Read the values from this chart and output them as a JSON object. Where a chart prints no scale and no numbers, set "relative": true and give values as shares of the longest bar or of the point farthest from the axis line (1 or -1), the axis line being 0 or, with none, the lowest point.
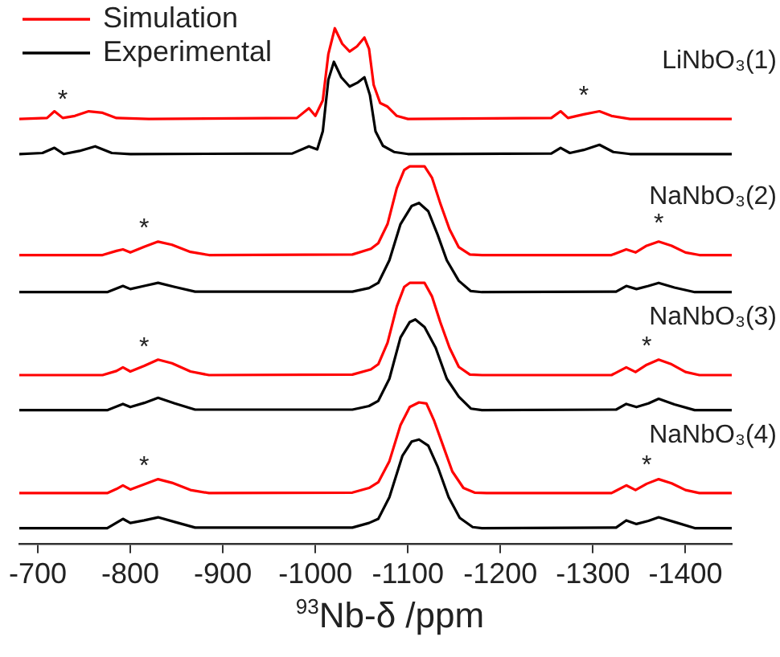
{
  "chart_data": {
    "type": "line",
    "relative": true,
    "xlabel": "$^{93}$Nb-δ /ppm",
    "xlim": [
      -680,
      -1450
    ],
    "xticks": [
      -700,
      -800,
      -900,
      -1000,
      -1100,
      -1200,
      -1300,
      -1400
    ],
    "tick_labels": "x",
    "grid": false,
    "legend": "top left",
    "marker": "none",
    "line_style": "solid",
    "series": [
      {
        "name": "Simulation",
        "color": "#ff0000",
        "x": [
          -680,
          -710,
          -718,
          -727,
          -740,
          -755,
          -770,
          -785,
          -820,
          -980,
          -993,
          -1000,
          -1008,
          -1014,
          -1021,
          -1029,
          -1037,
          -1045,
          -1053,
          -1058,
          -1063,
          -1070,
          -1078,
          -1088,
          -1100,
          -1255,
          -1265,
          -1273,
          -1290,
          -1307,
          -1320,
          -1340,
          -1450
        ],
        "values": [
          0.824,
          0.826,
          0.839,
          0.826,
          0.83,
          0.839,
          0.836,
          0.826,
          0.824,
          0.826,
          0.845,
          0.83,
          0.86,
          0.95,
          1.0,
          0.97,
          0.955,
          0.965,
          0.982,
          0.96,
          0.89,
          0.855,
          0.848,
          0.83,
          0.824,
          0.826,
          0.839,
          0.826,
          0.833,
          0.839,
          0.83,
          0.824,
          0.824
        ]
      },
      {
        "name": "Experimental",
        "color": "#000000",
        "x": [
          -680,
          -705,
          -718,
          -728,
          -745,
          -762,
          -780,
          -800,
          -975,
          -993,
          -1002,
          -1008,
          -1014,
          -1020,
          -1028,
          -1037,
          -1046,
          -1053,
          -1059,
          -1065,
          -1073,
          -1085,
          -1100,
          -1255,
          -1265,
          -1275,
          -1290,
          -1307,
          -1322,
          -1340,
          -1450
        ],
        "values": [
          0.756,
          0.758,
          0.768,
          0.756,
          0.762,
          0.771,
          0.758,
          0.756,
          0.757,
          0.771,
          0.765,
          0.8,
          0.9,
          0.935,
          0.905,
          0.887,
          0.895,
          0.905,
          0.87,
          0.8,
          0.772,
          0.76,
          0.756,
          0.757,
          0.768,
          0.758,
          0.764,
          0.774,
          0.76,
          0.756,
          0.756
        ]
      },
      {
        "color": "#ff0000",
        "x": [
          -680,
          -770,
          -785,
          -792,
          -800,
          -815,
          -830,
          -845,
          -865,
          -885,
          -1040,
          -1060,
          -1068,
          -1078,
          -1088,
          -1096,
          -1102,
          -1118,
          -1126,
          -1135,
          -1145,
          -1155,
          -1167,
          -1180,
          -1320,
          -1336,
          -1346,
          -1358,
          -1371,
          -1385,
          -1400,
          -1415,
          -1450
        ],
        "values": [
          0.56,
          0.56,
          0.568,
          0.571,
          0.565,
          0.576,
          0.586,
          0.58,
          0.566,
          0.56,
          0.561,
          0.572,
          0.583,
          0.62,
          0.69,
          0.725,
          0.732,
          0.732,
          0.71,
          0.66,
          0.61,
          0.575,
          0.561,
          0.56,
          0.56,
          0.571,
          0.565,
          0.578,
          0.586,
          0.578,
          0.565,
          0.56,
          0.56
        ]
      },
      {
        "color": "#000000",
        "x": [
          -680,
          -775,
          -792,
          -800,
          -815,
          -830,
          -848,
          -870,
          -1040,
          -1058,
          -1068,
          -1080,
          -1092,
          -1104,
          -1112,
          -1122,
          -1132,
          -1142,
          -1155,
          -1168,
          -1180,
          -1325,
          -1336,
          -1347,
          -1360,
          -1371,
          -1388,
          -1410,
          -1450
        ],
        "values": [
          0.488,
          0.488,
          0.5,
          0.494,
          0.5,
          0.506,
          0.498,
          0.489,
          0.489,
          0.496,
          0.506,
          0.55,
          0.62,
          0.655,
          0.661,
          0.645,
          0.6,
          0.55,
          0.51,
          0.49,
          0.488,
          0.489,
          0.5,
          0.494,
          0.5,
          0.506,
          0.497,
          0.488,
          0.488
        ]
      },
      {
        "color": "#ff0000",
        "x": [
          -680,
          -770,
          -785,
          -792,
          -800,
          -815,
          -830,
          -845,
          -865,
          -885,
          -1040,
          -1060,
          -1068,
          -1078,
          -1088,
          -1096,
          -1102,
          -1118,
          -1126,
          -1135,
          -1145,
          -1155,
          -1167,
          -1180,
          -1320,
          -1336,
          -1346,
          -1358,
          -1371,
          -1385,
          -1400,
          -1415,
          -1450
        ],
        "values": [
          0.327,
          0.327,
          0.335,
          0.342,
          0.334,
          0.345,
          0.357,
          0.35,
          0.334,
          0.327,
          0.328,
          0.338,
          0.348,
          0.39,
          0.46,
          0.498,
          0.506,
          0.506,
          0.48,
          0.43,
          0.38,
          0.343,
          0.328,
          0.327,
          0.327,
          0.342,
          0.333,
          0.347,
          0.357,
          0.348,
          0.333,
          0.327,
          0.327
        ]
      },
      {
        "color": "#000000",
        "x": [
          -680,
          -775,
          -792,
          -800,
          -815,
          -830,
          -848,
          -870,
          -1040,
          -1058,
          -1068,
          -1080,
          -1092,
          -1102,
          -1108,
          -1118,
          -1130,
          -1142,
          -1155,
          -1168,
          -1180,
          -1325,
          -1336,
          -1347,
          -1360,
          -1371,
          -1388,
          -1410,
          -1450
        ],
        "values": [
          0.259,
          0.259,
          0.271,
          0.265,
          0.273,
          0.283,
          0.272,
          0.26,
          0.26,
          0.267,
          0.277,
          0.32,
          0.4,
          0.43,
          0.435,
          0.42,
          0.38,
          0.32,
          0.285,
          0.262,
          0.259,
          0.26,
          0.271,
          0.265,
          0.272,
          0.281,
          0.27,
          0.259,
          0.259
        ]
      },
      {
        "color": "#ff0000",
        "x": [
          -680,
          -775,
          -785,
          -792,
          -800,
          -815,
          -830,
          -845,
          -865,
          -885,
          -1040,
          -1058,
          -1068,
          -1080,
          -1092,
          -1102,
          -1112,
          -1120,
          -1128,
          -1138,
          -1148,
          -1160,
          -1172,
          -1185,
          -1320,
          -1336,
          -1346,
          -1358,
          -1371,
          -1385,
          -1400,
          -1415,
          -1450
        ],
        "values": [
          0.098,
          0.098,
          0.106,
          0.113,
          0.105,
          0.115,
          0.125,
          0.118,
          0.104,
          0.098,
          0.099,
          0.108,
          0.119,
          0.16,
          0.23,
          0.265,
          0.274,
          0.272,
          0.24,
          0.19,
          0.14,
          0.108,
          0.099,
          0.098,
          0.098,
          0.113,
          0.104,
          0.116,
          0.125,
          0.117,
          0.104,
          0.098,
          0.098
        ]
      },
      {
        "color": "#000000",
        "x": [
          -680,
          -775,
          -792,
          -800,
          -815,
          -830,
          -848,
          -870,
          -1040,
          -1058,
          -1068,
          -1080,
          -1094,
          -1104,
          -1112,
          -1122,
          -1132,
          -1144,
          -1156,
          -1170,
          -1180,
          -1325,
          -1336,
          -1347,
          -1360,
          -1371,
          -1388,
          -1410,
          -1450
        ],
        "values": [
          0.03,
          0.03,
          0.048,
          0.04,
          0.045,
          0.051,
          0.042,
          0.031,
          0.031,
          0.04,
          0.048,
          0.09,
          0.17,
          0.198,
          0.202,
          0.19,
          0.15,
          0.09,
          0.05,
          0.032,
          0.03,
          0.031,
          0.045,
          0.038,
          0.044,
          0.051,
          0.042,
          0.03,
          0.03
        ]
      }
    ],
    "annotations": [
      {
        "text": "LiNbO₃(1)",
        "x": -1450,
        "y": 0.824
      },
      {
        "text": "NaNbO₃(2)",
        "x": -1450,
        "y": 0.56
      },
      {
        "text": "NaNbO₃(3)",
        "x": -1450,
        "y": 0.327
      },
      {
        "text": "NaNbO₃(4)",
        "x": -1450,
        "y": 0.098
      },
      {
        "text": "*",
        "x": -727,
        "y": 0.826
      },
      {
        "text": "*",
        "x": -1290,
        "y": 0.833
      },
      {
        "text": "*",
        "x": -815,
        "y": 0.576
      },
      {
        "text": "*",
        "x": -1371,
        "y": 0.586
      },
      {
        "text": "*",
        "x": -815,
        "y": 0.345
      },
      {
        "text": "*",
        "x": -1358,
        "y": 0.347
      },
      {
        "text": "*",
        "x": -815,
        "y": 0.115
      },
      {
        "text": "*",
        "x": -1358,
        "y": 0.116
      }
    ]
  }
}
